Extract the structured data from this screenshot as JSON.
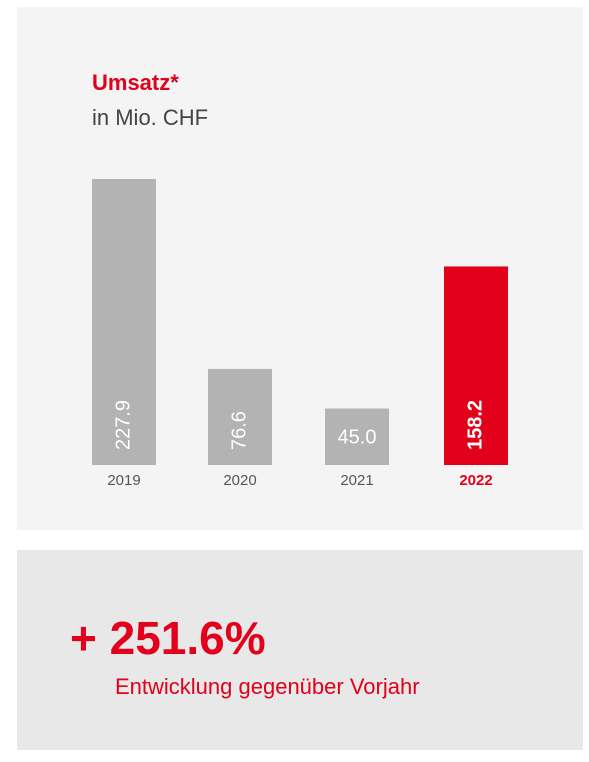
{
  "chart_data": {
    "type": "bar",
    "title": "Umsatz*",
    "subtitle": "in Mio. CHF",
    "categories": [
      "2019",
      "2020",
      "2021",
      "2022"
    ],
    "values": [
      227.9,
      76.6,
      45.0,
      158.2
    ],
    "value_labels": [
      "227.9",
      "76.6",
      "45.0",
      "158.2"
    ],
    "colors": [
      "#b3b3b3",
      "#b3b3b3",
      "#b3b3b3",
      "#e2001a"
    ],
    "highlight_color": "#e2001a"
  },
  "kpi": {
    "value": "+ 251.6%",
    "caption": "Entwicklung gegenüber Vorjahr"
  }
}
